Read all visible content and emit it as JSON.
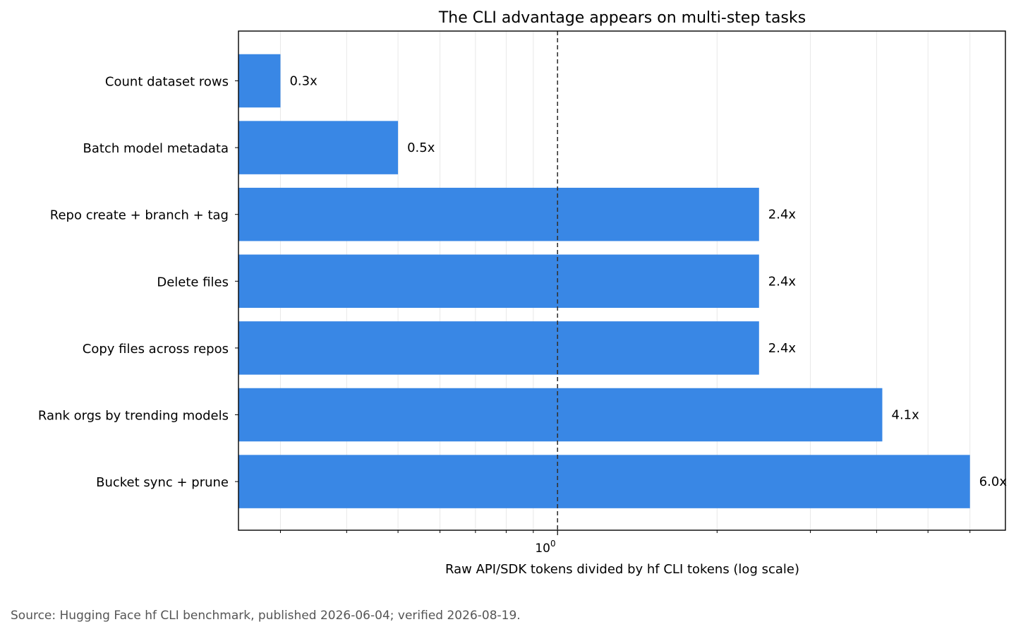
{
  "chart_data": {
    "type": "bar",
    "orientation": "horizontal",
    "title": "The CLI advantage appears on multi-step tasks",
    "xlabel": "Raw API/SDK tokens divided by hf CLI tokens (log scale)",
    "ylabel": "",
    "xscale": "log",
    "xlim": [
      0.25,
      7.0
    ],
    "x_tick_label": "10",
    "x_tick_exponent": "0",
    "reference_line": 1.0,
    "grid": "vertical minor lines",
    "categories": [
      "Count dataset rows",
      "Batch model metadata",
      "Repo create + branch + tag",
      "Delete files",
      "Copy files across repos",
      "Rank orgs by trending models",
      "Bucket sync + prune"
    ],
    "values": [
      0.3,
      0.5,
      2.4,
      2.4,
      2.4,
      4.1,
      6.0
    ],
    "data_labels": [
      "0.3x",
      "0.5x",
      "2.4x",
      "2.4x",
      "2.4x",
      "4.1x",
      "6.0x"
    ],
    "bar_color": "#3987e5"
  },
  "source": "Source: Hugging Face hf CLI benchmark, published 2026-06-04; verified 2026-08-19."
}
